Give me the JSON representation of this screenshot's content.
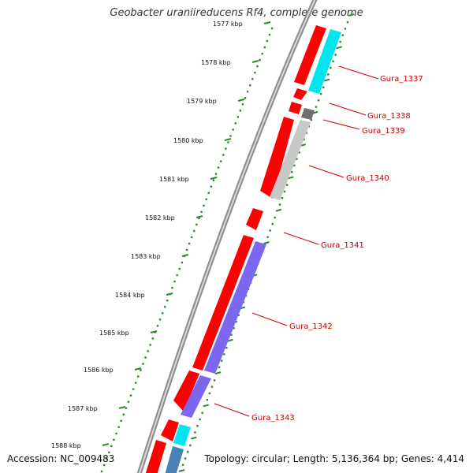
{
  "title": "Geobacter uraniireducens Rf4, complete genome",
  "footer": {
    "accession": "Accession: NC_009483",
    "topology": "Topology: circular; Length: 5,136,364 bp; Genes: 4,414"
  },
  "colors": {
    "cds": "#ff0000",
    "backbone": "#999999",
    "tick": "#2a8a2a",
    "label": "#cc0000",
    "cyan": "#00e5ee",
    "gray_light": "#c8c8c8",
    "gray_dark": "#707070",
    "purple": "#7b68ee",
    "steel": "#4682b4"
  },
  "kbp_ticks": [
    "1577 kbp",
    "1578 kbp",
    "1579 kbp",
    "1580 kbp",
    "1581 kbp",
    "1582 kbp",
    "1583 kbp",
    "1584 kbp",
    "1585 kbp",
    "1586 kbp",
    "1587 kbp",
    "1588 kbp"
  ],
  "gene_labels": [
    "Gura_1337",
    "Gura_1338",
    "Gura_1339",
    "Gura_1340",
    "Gura_1341",
    "Gura_1342",
    "Gura_1343"
  ]
}
